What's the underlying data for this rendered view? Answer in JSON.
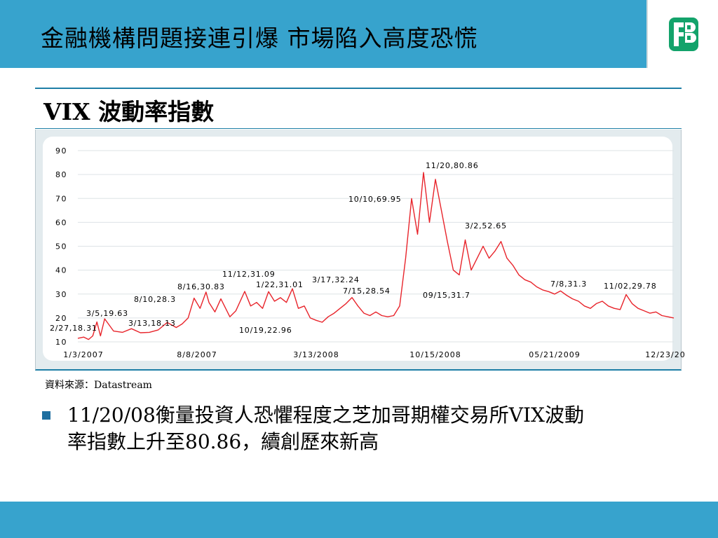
{
  "header": {
    "title": "金融機構問題接連引爆  市場陷入高度恐慌",
    "logo_icon": "fubon-logo-icon"
  },
  "subtitle": "VIX 波動率指數",
  "colors": {
    "header_bar": "#37a3cd",
    "series_line": "#e8242b",
    "chart_panel": "#ffffff",
    "bullet": "#1f6fa0"
  },
  "chart_data": {
    "type": "line",
    "title": "",
    "xlabel": "",
    "ylabel": "",
    "ylim": [
      10,
      90
    ],
    "yticks": [
      "90",
      "80",
      "70",
      "60",
      "50",
      "40",
      "30",
      "20",
      "10"
    ],
    "xticks": [
      "1/3/2007",
      "8/8/2007",
      "3/13/2008",
      "10/15/2008",
      "05/21/2009",
      "12/23/20"
    ],
    "grid": true,
    "series": [
      {
        "x": [
          0,
          0.01,
          0.018,
          0.025,
          0.032,
          0.038,
          0.045,
          0.06,
          0.075,
          0.09,
          0.105,
          0.12,
          0.135,
          0.15,
          0.165,
          0.175,
          0.185,
          0.195,
          0.205,
          0.215,
          0.22,
          0.23,
          0.24,
          0.255,
          0.265,
          0.28,
          0.29,
          0.3,
          0.31,
          0.32,
          0.33,
          0.34,
          0.35,
          0.36,
          0.37,
          0.38,
          0.39,
          0.4,
          0.41,
          0.42,
          0.43,
          0.44,
          0.45,
          0.46,
          0.47,
          0.48,
          0.49,
          0.5,
          0.51,
          0.52,
          0.53,
          0.54,
          0.55,
          0.56,
          0.57,
          0.58,
          0.59,
          0.6,
          0.61,
          0.62,
          0.63,
          0.64,
          0.65,
          0.66,
          0.67,
          0.68,
          0.69,
          0.7,
          0.71,
          0.72,
          0.73,
          0.74,
          0.75,
          0.76,
          0.77,
          0.78,
          0.79,
          0.8,
          0.81,
          0.82,
          0.83,
          0.84,
          0.85,
          0.86,
          0.87,
          0.88,
          0.89,
          0.9,
          0.91,
          0.92,
          0.93,
          0.94,
          0.95,
          0.96,
          0.97,
          0.98,
          0.99,
          1.0
        ],
        "y": [
          11.5,
          12.0,
          11.0,
          12.5,
          18.31,
          12.5,
          19.63,
          14.5,
          14.0,
          15.5,
          13.8,
          14.0,
          15.0,
          18.13,
          16.0,
          17.5,
          20.0,
          28.3,
          24.0,
          30.83,
          26.5,
          22.5,
          28.0,
          20.5,
          22.96,
          31.09,
          25.0,
          26.5,
          24.0,
          31.01,
          27.0,
          28.5,
          26.5,
          32.24,
          24.0,
          25.0,
          20.0,
          19.0,
          18.2,
          20.5,
          22.0,
          24.0,
          26.0,
          28.54,
          25.0,
          22.0,
          21.0,
          22.5,
          21.0,
          20.5,
          21.0,
          25.0,
          45.0,
          69.95,
          55.0,
          80.86,
          60.0,
          78.0,
          65.0,
          52.0,
          40.0,
          38.0,
          52.65,
          40.0,
          45.0,
          50.0,
          45.0,
          48.0,
          52.0,
          45.0,
          42.0,
          38.0,
          36.0,
          35.0,
          33.0,
          31.7,
          31.0,
          30.0,
          31.3,
          29.5,
          28.0,
          27.0,
          25.0,
          24.0,
          26.0,
          27.0,
          25.0,
          24.0,
          23.5,
          29.78,
          26.0,
          24.0,
          23.0,
          22.0,
          22.5,
          21.0,
          20.5,
          20.0
        ]
      }
    ],
    "annotations": [
      "2/27,18.31",
      "3/5,19.63",
      "3/13,18.13",
      "8/10,28.3",
      "8/16,30.83",
      "11/12,31.09",
      "1/22,31.01",
      "3/17,32.24",
      "10/19,22.96",
      "7/15,28.54",
      "10/10,69.95",
      "11/20,80.86",
      "3/2,52.65",
      "09/15,31.7",
      "7/8,31.3",
      "11/02,29.78"
    ]
  },
  "source_text": "資料來源：Datastream",
  "bullet": {
    "text_line1": "11/20/08衡量投資人恐懼程度之芝加哥期權交易所VIX波動",
    "text_line2": "率指數上升至80.86，續創歷來新高"
  }
}
